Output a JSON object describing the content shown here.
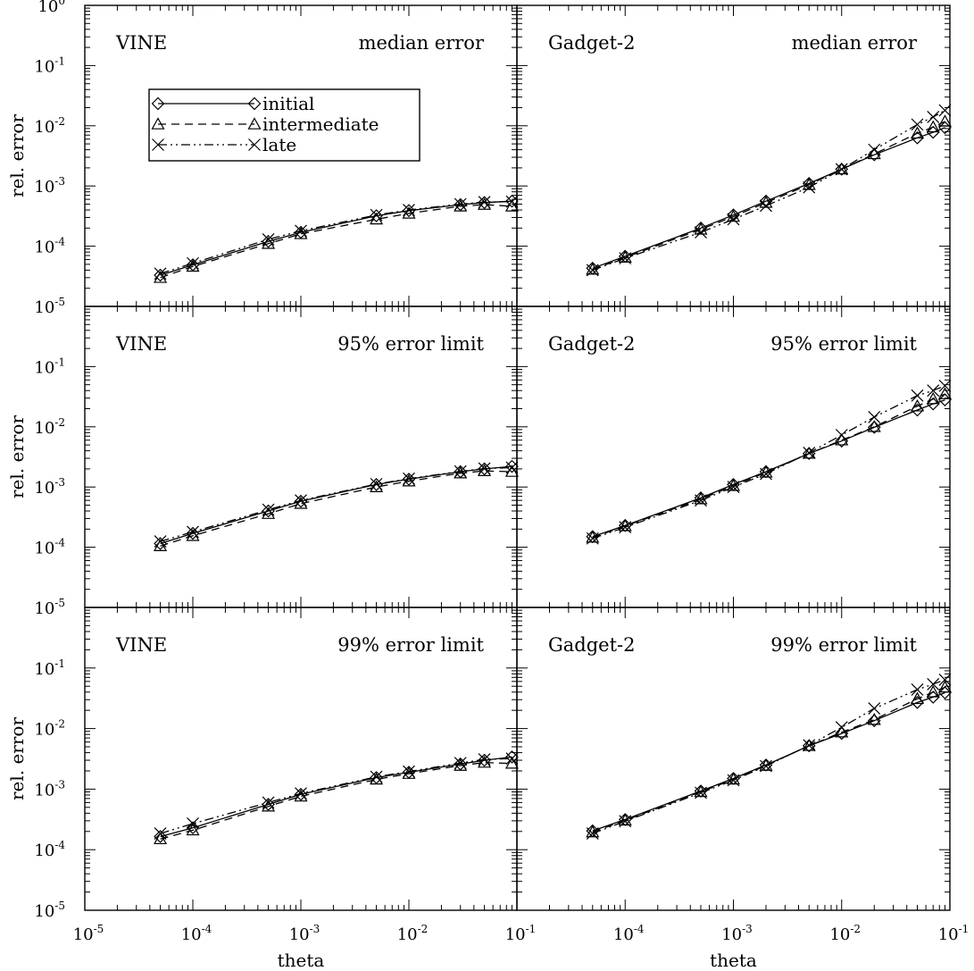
{
  "chart_data": {
    "type": "line",
    "x_scale": "log",
    "y_scale": "log",
    "xlim": [
      1e-05,
      0.1
    ],
    "ylim": [
      1e-05,
      1
    ],
    "xlabel": "theta",
    "ylabel": "rel. error",
    "x_tick_exponents": [
      "-5",
      "-4",
      "-3",
      "-2",
      "-1"
    ],
    "y_tick_exponents": [
      "-5",
      "-4",
      "-3",
      "-2",
      "-1",
      "0"
    ],
    "tick_base": "10",
    "legend": {
      "placement": "upper-left of top-left panel",
      "entries": [
        {
          "label": "initial",
          "line": "solid",
          "marker": "diamond"
        },
        {
          "label": "intermediate",
          "line": "dashed",
          "marker": "triangle"
        },
        {
          "label": "late",
          "line": "dash-dot-dot",
          "marker": "cross"
        }
      ]
    },
    "x": [
      5e-05,
      0.0001,
      0.0005,
      0.001,
      0.005,
      0.01,
      0.03,
      0.05,
      0.09
    ],
    "x_gadget": [
      5e-05,
      0.0001,
      0.0005,
      0.001,
      0.002,
      0.005,
      0.01,
      0.02,
      0.05,
      0.07,
      0.09
    ],
    "panels": [
      {
        "code": "VINE",
        "statistic": "median error",
        "series": [
          {
            "name": "initial",
            "values": [
              3.3e-05,
              4.9e-05,
              0.00012,
              0.00017,
              0.00032,
              0.00039,
              0.00049,
              0.00053,
              0.00056
            ]
          },
          {
            "name": "intermediate",
            "values": [
              3e-05,
              4.6e-05,
              0.00011,
              0.00016,
              0.00028,
              0.00035,
              0.00046,
              0.00049,
              0.00046
            ]
          },
          {
            "name": "late",
            "values": [
              3.5e-05,
              5.2e-05,
              0.00013,
              0.00018,
              0.00033,
              0.0004,
              0.0005,
              0.00054,
              0.00055
            ]
          }
        ]
      },
      {
        "code": "Gadget-2",
        "statistic": "median error",
        "series": [
          {
            "name": "initial",
            "values": [
              4.3e-05,
              6.8e-05,
              0.0002,
              0.00033,
              0.00056,
              0.0011,
              0.0019,
              0.0033,
              0.0063,
              0.0078,
              0.0093
            ]
          },
          {
            "name": "intermediate",
            "values": [
              4.1e-05,
              6.5e-05,
              0.00019,
              0.00031,
              0.00053,
              0.00105,
              0.0019,
              0.0034,
              0.0075,
              0.0095,
              0.0118
            ]
          },
          {
            "name": "late",
            "values": [
              4e-05,
              6.3e-05,
              0.00017,
              0.00028,
              0.00047,
              0.00095,
              0.0019,
              0.004,
              0.0105,
              0.014,
              0.018
            ]
          }
        ]
      },
      {
        "code": "VINE",
        "statistic": "95% error limit",
        "series": [
          {
            "name": "initial",
            "values": [
              0.000115,
              0.00017,
              0.0004,
              0.00058,
              0.0011,
              0.00135,
              0.0018,
              0.002,
              0.0022
            ]
          },
          {
            "name": "intermediate",
            "values": [
              0.000105,
              0.000155,
              0.00036,
              0.00053,
              0.001,
              0.00125,
              0.0017,
              0.00185,
              0.0018
            ]
          },
          {
            "name": "late",
            "values": [
              0.000125,
              0.00018,
              0.00042,
              0.0006,
              0.00112,
              0.00138,
              0.00182,
              0.00203,
              0.0021
            ]
          }
        ]
      },
      {
        "code": "Gadget-2",
        "statistic": "95% error limit",
        "series": [
          {
            "name": "initial",
            "values": [
              0.00015,
              0.00023,
              0.00066,
              0.0011,
              0.0018,
              0.0036,
              0.0058,
              0.0098,
              0.019,
              0.024,
              0.028
            ]
          },
          {
            "name": "intermediate",
            "values": [
              0.000145,
              0.000225,
              0.00063,
              0.00105,
              0.00175,
              0.0036,
              0.006,
              0.01,
              0.022,
              0.029,
              0.035
            ]
          },
          {
            "name": "late",
            "values": [
              0.00014,
              0.000215,
              0.0006,
              0.001,
              0.00165,
              0.0037,
              0.0073,
              0.0145,
              0.033,
              0.04,
              0.048
            ]
          }
        ]
      },
      {
        "code": "VINE",
        "statistic": "99% error limit",
        "series": [
          {
            "name": "initial",
            "values": [
              0.000165,
              0.00023,
              0.00056,
              0.00082,
              0.00155,
              0.0019,
              0.0026,
              0.003,
              0.0034
            ]
          },
          {
            "name": "intermediate",
            "values": [
              0.00015,
              0.00021,
              0.00052,
              0.00076,
              0.00145,
              0.0018,
              0.00245,
              0.00275,
              0.00265
            ]
          },
          {
            "name": "late",
            "values": [
              0.000185,
              0.00027,
              0.0006,
              0.00085,
              0.0016,
              0.00195,
              0.0027,
              0.0031,
              0.0032
            ]
          }
        ]
      },
      {
        "code": "Gadget-2",
        "statistic": "99% error limit",
        "series": [
          {
            "name": "initial",
            "values": [
              0.000205,
              0.000315,
              0.00093,
              0.0015,
              0.0025,
              0.0052,
              0.0083,
              0.0135,
              0.027,
              0.033,
              0.039
            ]
          },
          {
            "name": "intermediate",
            "values": [
              0.000195,
              0.000305,
              0.0009,
              0.00145,
              0.00245,
              0.0052,
              0.0087,
              0.014,
              0.031,
              0.04,
              0.048
            ]
          },
          {
            "name": "late",
            "values": [
              0.000185,
              0.000295,
              0.00087,
              0.0014,
              0.0024,
              0.0053,
              0.0105,
              0.0215,
              0.044,
              0.054,
              0.064
            ]
          }
        ]
      }
    ]
  }
}
